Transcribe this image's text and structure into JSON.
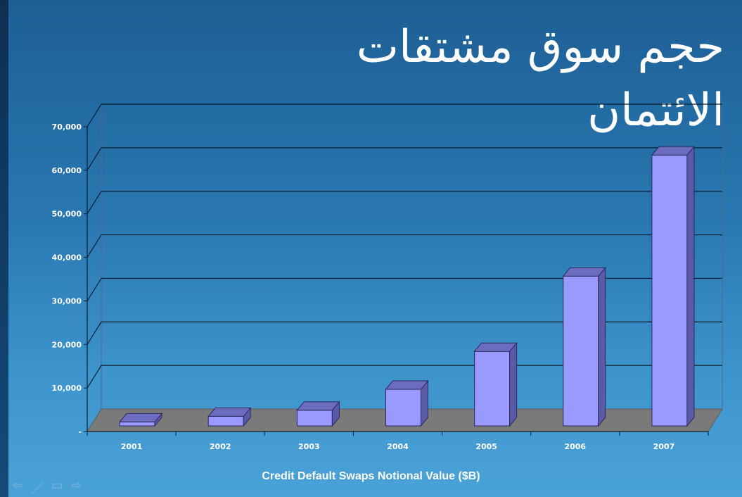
{
  "slide": {
    "title": "حجم سوق مشتقات الائتمان"
  },
  "nav": {
    "prev_icon": "arrow-left-icon",
    "pen_icon": "pen-icon",
    "menu_icon": "menu-icon",
    "next_icon": "arrow-right-icon"
  },
  "chart_data": {
    "type": "bar",
    "categories": [
      "2001",
      "2002",
      "2003",
      "2004",
      "2005",
      "2006",
      "2007"
    ],
    "series": [
      {
        "values": [
          900,
          2200,
          3600,
          8400,
          17100,
          34400,
          62200
        ]
      }
    ],
    "title": "",
    "xlabel": "Credit Default Swaps Notional Value ($B)",
    "ylabel": "",
    "ylim": [
      0,
      70000
    ],
    "yticks": [
      "-",
      "10,000",
      "20,000",
      "30,000",
      "40,000",
      "50,000",
      "60,000",
      "70,000"
    ],
    "grid": true,
    "three_d": true,
    "colors": {
      "bar_front": "#9999ff",
      "bar_side": "#5a5aa8",
      "bar_top": "#6c6cc0",
      "floor": "#7a7a7a"
    }
  }
}
